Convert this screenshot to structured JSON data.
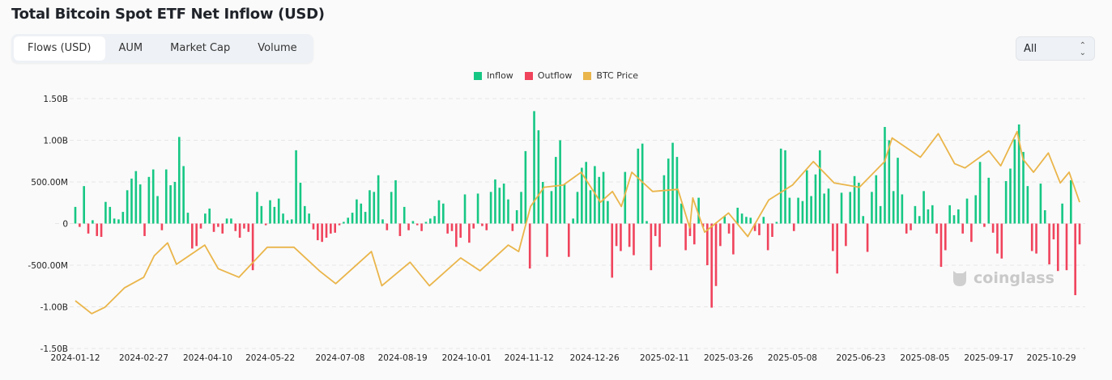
{
  "title": "Total Bitcoin Spot ETF Net Inflow (USD)",
  "tabs": [
    {
      "label": "Flows (USD)",
      "active": true
    },
    {
      "label": "AUM",
      "active": false
    },
    {
      "label": "Market Cap",
      "active": false
    },
    {
      "label": "Volume",
      "active": false
    }
  ],
  "range_select": {
    "value": "All",
    "icon": "chevron-up-down-icon"
  },
  "watermark": "coinglass",
  "colors": {
    "inflow": "#16c784",
    "outflow": "#f0435c",
    "price": "#eab54a",
    "grid": "#e6e6e6"
  },
  "chart_data": {
    "type": "bar",
    "title": "Total Bitcoin Spot ETF Net Inflow (USD)",
    "legend": {
      "placement": "top",
      "entries": [
        "Inflow",
        "Outflow",
        "BTC Price"
      ]
    },
    "grid": true,
    "ylim": [
      -1500000000,
      1500000000
    ],
    "y_ticks": [
      {
        "value": 1500000000,
        "label": "1.50B"
      },
      {
        "value": 1000000000,
        "label": "1.00B"
      },
      {
        "value": 500000000,
        "label": "500.00M"
      },
      {
        "value": 0,
        "label": "0"
      },
      {
        "value": -500000000,
        "label": "-500.00M"
      },
      {
        "value": -1000000000,
        "label": "-1.00B"
      },
      {
        "value": -1500000000,
        "label": "-1.50B"
      }
    ],
    "x_ticks": [
      "2024-01-12",
      "2024-02-27",
      "2024-04-10",
      "2024-05-22",
      "2024-07-08",
      "2024-08-19",
      "2024-10-01",
      "2024-11-12",
      "2024-12-26",
      "2025-02-11",
      "2025-03-26",
      "2025-05-08",
      "2025-06-23",
      "2025-08-05",
      "2025-09-17",
      "2025-10-29"
    ],
    "x_range": [
      "2024-01-12",
      "2025-11-17"
    ],
    "flows_unit": "USD millions",
    "flows": [
      200,
      -40,
      450,
      -120,
      40,
      -150,
      -160,
      260,
      200,
      60,
      50,
      140,
      400,
      540,
      630,
      470,
      -150,
      560,
      650,
      330,
      -80,
      650,
      460,
      500,
      1040,
      690,
      130,
      -300,
      -270,
      -60,
      120,
      180,
      -100,
      -40,
      -120,
      60,
      60,
      -90,
      -170,
      -60,
      -100,
      -560,
      380,
      210,
      -20,
      280,
      200,
      300,
      120,
      40,
      50,
      880,
      490,
      210,
      120,
      -70,
      -200,
      -220,
      -170,
      -120,
      -110,
      -20,
      20,
      70,
      130,
      290,
      240,
      140,
      400,
      380,
      580,
      50,
      -80,
      380,
      520,
      -150,
      200,
      -80,
      30,
      -20,
      -90,
      20,
      60,
      90,
      280,
      240,
      -120,
      -90,
      -280,
      -170,
      350,
      -230,
      -60,
      360,
      -30,
      -80,
      380,
      530,
      430,
      480,
      290,
      -90,
      160,
      380,
      870,
      -540,
      1350,
      1120,
      500,
      -400,
      390,
      800,
      1000,
      470,
      -400,
      60,
      380,
      670,
      740,
      400,
      690,
      560,
      620,
      270,
      -650,
      -270,
      -330,
      620,
      -280,
      -380,
      900,
      960,
      30,
      -560,
      -150,
      -280,
      580,
      780,
      970,
      800,
      240,
      -320,
      -150,
      -250,
      310,
      -40,
      -500,
      -1010,
      -750,
      -270,
      90,
      -120,
      -370,
      190,
      120,
      80,
      70,
      -90,
      -140,
      80,
      -320,
      -160,
      20,
      900,
      880,
      310,
      -90,
      310,
      270,
      640,
      330,
      590,
      880,
      360,
      420,
      -330,
      -600,
      370,
      -270,
      380,
      570,
      490,
      90,
      -340,
      380,
      580,
      210,
      1160,
      1000,
      390,
      790,
      350,
      -120,
      -80,
      210,
      90,
      390,
      170,
      220,
      -120,
      -520,
      -320,
      220,
      100,
      170,
      -120,
      300,
      -220,
      340,
      740,
      -40,
      550,
      -110,
      -360,
      -420,
      510,
      660,
      1010,
      1190,
      860,
      450,
      -330,
      -360,
      480,
      160,
      -490,
      -190,
      -570,
      240,
      -560,
      520,
      -860,
      -250
    ],
    "btc_price_unit": "USD thousands",
    "btc_price": [
      [
        "2024-01-12",
        46
      ],
      [
        "2024-01-23",
        40
      ],
      [
        "2024-02-01",
        43
      ],
      [
        "2024-02-14",
        52
      ],
      [
        "2024-02-27",
        57
      ],
      [
        "2024-03-05",
        67
      ],
      [
        "2024-03-14",
        73
      ],
      [
        "2024-03-20",
        63
      ],
      [
        "2024-04-08",
        72
      ],
      [
        "2024-04-17",
        61
      ],
      [
        "2024-05-01",
        57
      ],
      [
        "2024-05-20",
        71
      ],
      [
        "2024-06-07",
        71
      ],
      [
        "2024-06-24",
        60
      ],
      [
        "2024-07-05",
        54
      ],
      [
        "2024-07-29",
        69
      ],
      [
        "2024-08-05",
        53
      ],
      [
        "2024-08-24",
        64
      ],
      [
        "2024-09-06",
        53
      ],
      [
        "2024-09-27",
        66
      ],
      [
        "2024-10-10",
        60
      ],
      [
        "2024-10-29",
        72
      ],
      [
        "2024-11-05",
        69
      ],
      [
        "2024-11-13",
        90
      ],
      [
        "2024-11-22",
        99
      ],
      [
        "2024-12-05",
        100
      ],
      [
        "2024-12-17",
        106
      ],
      [
        "2024-12-30",
        92
      ],
      [
        "2025-01-07",
        97
      ],
      [
        "2025-01-13",
        90
      ],
      [
        "2025-01-20",
        106
      ],
      [
        "2025-02-03",
        97
      ],
      [
        "2025-02-20",
        98
      ],
      [
        "2025-02-28",
        80
      ],
      [
        "2025-03-02",
        94
      ],
      [
        "2025-03-10",
        78
      ],
      [
        "2025-03-26",
        87
      ],
      [
        "2025-04-08",
        76
      ],
      [
        "2025-04-22",
        93
      ],
      [
        "2025-05-08",
        100
      ],
      [
        "2025-05-22",
        111
      ],
      [
        "2025-06-05",
        101
      ],
      [
        "2025-06-22",
        99
      ],
      [
        "2025-07-09",
        111
      ],
      [
        "2025-07-14",
        122
      ],
      [
        "2025-08-02",
        113
      ],
      [
        "2025-08-14",
        124
      ],
      [
        "2025-08-25",
        110
      ],
      [
        "2025-09-01",
        108
      ],
      [
        "2025-09-17",
        116
      ],
      [
        "2025-09-25",
        109
      ],
      [
        "2025-10-06",
        125
      ],
      [
        "2025-10-10",
        112
      ],
      [
        "2025-10-17",
        106
      ],
      [
        "2025-10-27",
        115
      ],
      [
        "2025-11-04",
        101
      ],
      [
        "2025-11-10",
        106
      ],
      [
        "2025-11-17",
        92
      ]
    ]
  }
}
